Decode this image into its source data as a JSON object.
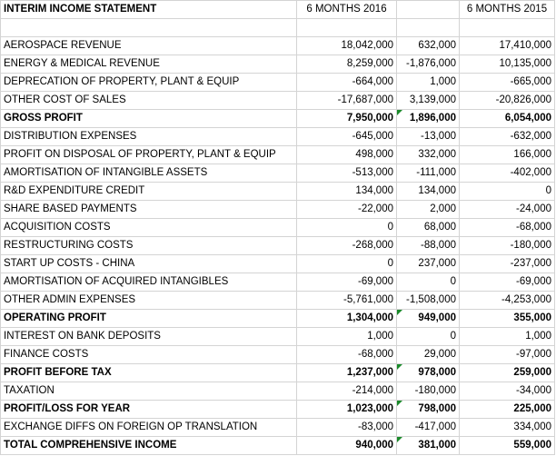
{
  "header": {
    "title": "INTERIM INCOME STATEMENT",
    "col_2016": "6 MONTHS 2016",
    "col_diff": "",
    "col_2015": "6 MONTHS 2015"
  },
  "rows": [
    {
      "label": "AEROSPACE REVENUE",
      "v2016": "18,042,000",
      "diff": "632,000",
      "v2015": "17,410,000"
    },
    {
      "label": "ENERGY & MEDICAL REVENUE",
      "v2016": "8,259,000",
      "diff": "-1,876,000",
      "v2015": "10,135,000"
    },
    {
      "label": "DEPRECATION OF PROPERTY, PLANT & EQUIP",
      "v2016": "-664,000",
      "diff": "1,000",
      "v2015": "-665,000"
    },
    {
      "label": "OTHER COST OF SALES",
      "v2016": "-17,687,000",
      "diff": "3,139,000",
      "v2015": "-20,826,000"
    },
    {
      "label": "GROSS PROFIT",
      "v2016": "7,950,000",
      "diff": "1,896,000",
      "v2015": "6,054,000"
    },
    {
      "label": "DISTRIBUTION EXPENSES",
      "v2016": "-645,000",
      "diff": "-13,000",
      "v2015": "-632,000"
    },
    {
      "label": "PROFIT ON DISPOSAL OF PROPERTY, PLANT & EQUIP",
      "v2016": "498,000",
      "diff": "332,000",
      "v2015": "166,000"
    },
    {
      "label": "AMORTISATION OF INTANGIBLE ASSETS",
      "v2016": "-513,000",
      "diff": "-111,000",
      "v2015": "-402,000"
    },
    {
      "label": "R&D EXPENDITURE CREDIT",
      "v2016": "134,000",
      "diff": "134,000",
      "v2015": "0"
    },
    {
      "label": "SHARE BASED PAYMENTS",
      "v2016": "-22,000",
      "diff": "2,000",
      "v2015": "-24,000"
    },
    {
      "label": "ACQUISITION COSTS",
      "v2016": "0",
      "diff": "68,000",
      "v2015": "-68,000"
    },
    {
      "label": "RESTRUCTURING COSTS",
      "v2016": "-268,000",
      "diff": "-88,000",
      "v2015": "-180,000"
    },
    {
      "label": "START UP COSTS - CHINA",
      "v2016": "0",
      "diff": "237,000",
      "v2015": "-237,000"
    },
    {
      "label": "AMORTISATION OF ACQUIRED INTANGIBLES",
      "v2016": "-69,000",
      "diff": "0",
      "v2015": "-69,000"
    },
    {
      "label": "OTHER ADMIN EXPENSES",
      "v2016": "-5,761,000",
      "diff": "-1,508,000",
      "v2015": "-4,253,000"
    },
    {
      "label": "OPERATING PROFIT",
      "v2016": "1,304,000",
      "diff": "949,000",
      "v2015": "355,000"
    },
    {
      "label": "INTEREST ON BANK DEPOSITS",
      "v2016": "1,000",
      "diff": "0",
      "v2015": "1,000"
    },
    {
      "label": "FINANCE COSTS",
      "v2016": "-68,000",
      "diff": "29,000",
      "v2015": "-97,000"
    },
    {
      "label": "PROFIT BEFORE TAX",
      "v2016": "1,237,000",
      "diff": "978,000",
      "v2015": "259,000"
    },
    {
      "label": "TAXATION",
      "v2016": "-214,000",
      "diff": "-180,000",
      "v2015": "-34,000"
    },
    {
      "label": "PROFIT/LOSS FOR YEAR",
      "v2016": "1,023,000",
      "diff": "798,000",
      "v2015": "225,000"
    },
    {
      "label": "EXCHANGE DIFFS ON FOREIGN OP TRANSLATION",
      "v2016": "-83,000",
      "diff": "-417,000",
      "v2015": "334,000"
    },
    {
      "label": "TOTAL COMPREHENSIVE INCOME",
      "v2016": "940,000",
      "diff": "381,000",
      "v2015": "559,000"
    }
  ],
  "colors": {
    "positive_diff": "#1f2fa8",
    "negative_diff": "#b01414",
    "formula_flag": "#1a8a2a",
    "grid": "#d4d4d4"
  }
}
